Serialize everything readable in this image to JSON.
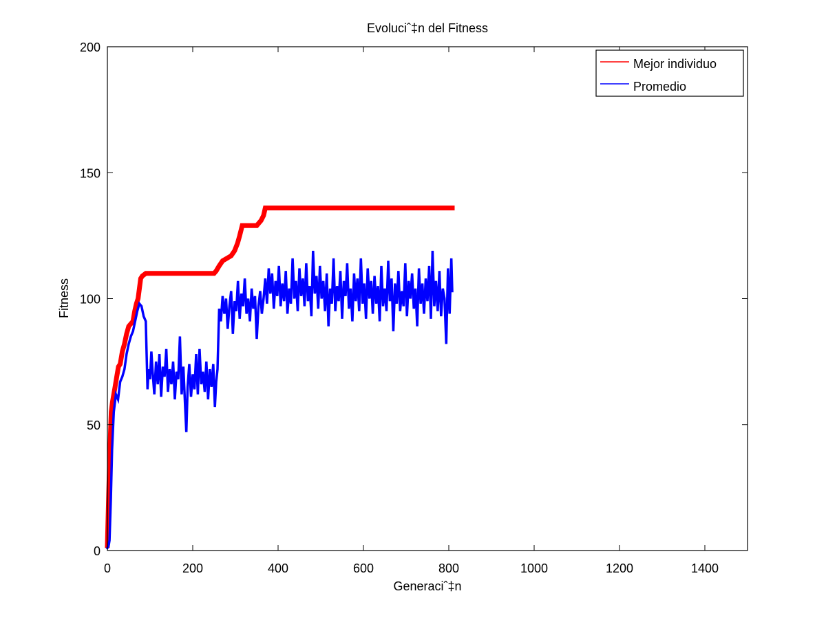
{
  "chart_data": {
    "type": "line",
    "title": "Evoluciˆ‡n del Fitness",
    "xlabel": "Generaciˆ‡n",
    "ylabel": "Fitness",
    "xlim": [
      0,
      1500
    ],
    "ylim": [
      0,
      200
    ],
    "xticks": [
      0,
      200,
      400,
      600,
      800,
      1000,
      1200,
      1400
    ],
    "yticks": [
      0,
      50,
      100,
      150,
      200
    ],
    "xtick_labels": [
      "0",
      "200",
      "400",
      "600",
      "800",
      "1000",
      "1200",
      "1400"
    ],
    "ytick_labels": [
      "0",
      "50",
      "100",
      "150",
      "200"
    ],
    "grid": false,
    "legend_position": "top-right",
    "series": [
      {
        "name": "Mejor individuo",
        "color": "#ff0000",
        "line_width": "thick",
        "points": [
          [
            0,
            2
          ],
          [
            3,
            22
          ],
          [
            6,
            40
          ],
          [
            9,
            55
          ],
          [
            12,
            59
          ],
          [
            15,
            62
          ],
          [
            18,
            65
          ],
          [
            22,
            69
          ],
          [
            26,
            73
          ],
          [
            30,
            74
          ],
          [
            35,
            79
          ],
          [
            40,
            82
          ],
          [
            45,
            86
          ],
          [
            50,
            89
          ],
          [
            55,
            90
          ],
          [
            60,
            91
          ],
          [
            64,
            95
          ],
          [
            68,
            98
          ],
          [
            72,
            100
          ],
          [
            75,
            104
          ],
          [
            78,
            108
          ],
          [
            82,
            109
          ],
          [
            90,
            110
          ],
          [
            150,
            110
          ],
          [
            200,
            110
          ],
          [
            250,
            110
          ],
          [
            255,
            111
          ],
          [
            262,
            113
          ],
          [
            270,
            115
          ],
          [
            280,
            116
          ],
          [
            290,
            117
          ],
          [
            298,
            119
          ],
          [
            305,
            122
          ],
          [
            310,
            125
          ],
          [
            316,
            129
          ],
          [
            330,
            129
          ],
          [
            350,
            129
          ],
          [
            360,
            131
          ],
          [
            366,
            133
          ],
          [
            370,
            136
          ],
          [
            400,
            136
          ],
          [
            500,
            136
          ],
          [
            600,
            136
          ],
          [
            700,
            136
          ],
          [
            808,
            136
          ]
        ]
      },
      {
        "name": "Promedio",
        "color": "#0000ff",
        "line_width": "medium",
        "points": [
          [
            0,
            1
          ],
          [
            3,
            2
          ],
          [
            5,
            4
          ],
          [
            8,
            20
          ],
          [
            11,
            40
          ],
          [
            15,
            55
          ],
          [
            20,
            62
          ],
          [
            25,
            60
          ],
          [
            30,
            67
          ],
          [
            35,
            69
          ],
          [
            40,
            72
          ],
          [
            45,
            78
          ],
          [
            50,
            82
          ],
          [
            55,
            85
          ],
          [
            60,
            87
          ],
          [
            65,
            91
          ],
          [
            70,
            95
          ],
          [
            75,
            98
          ],
          [
            80,
            97
          ],
          [
            85,
            93
          ],
          [
            90,
            91
          ],
          [
            94,
            64
          ],
          [
            97,
            72
          ],
          [
            100,
            68
          ],
          [
            103,
            79
          ],
          [
            106,
            71
          ],
          [
            110,
            62
          ],
          [
            114,
            75
          ],
          [
            118,
            66
          ],
          [
            122,
            78
          ],
          [
            126,
            61
          ],
          [
            130,
            73
          ],
          [
            134,
            69
          ],
          [
            138,
            80
          ],
          [
            142,
            63
          ],
          [
            146,
            72
          ],
          [
            150,
            66
          ],
          [
            154,
            75
          ],
          [
            158,
            60
          ],
          [
            162,
            71
          ],
          [
            166,
            68
          ],
          [
            170,
            85
          ],
          [
            174,
            62
          ],
          [
            178,
            73
          ],
          [
            182,
            58
          ],
          [
            185,
            47
          ],
          [
            188,
            65
          ],
          [
            192,
            74
          ],
          [
            196,
            61
          ],
          [
            200,
            70
          ],
          [
            204,
            64
          ],
          [
            208,
            78
          ],
          [
            212,
            62
          ],
          [
            216,
            80
          ],
          [
            220,
            66
          ],
          [
            224,
            71
          ],
          [
            228,
            63
          ],
          [
            232,
            75
          ],
          [
            236,
            60
          ],
          [
            240,
            72
          ],
          [
            244,
            65
          ],
          [
            248,
            74
          ],
          [
            252,
            57
          ],
          [
            255,
            67
          ],
          [
            258,
            72
          ],
          [
            262,
            96
          ],
          [
            266,
            91
          ],
          [
            270,
            101
          ],
          [
            274,
            94
          ],
          [
            278,
            100
          ],
          [
            282,
            88
          ],
          [
            286,
            97
          ],
          [
            290,
            103
          ],
          [
            294,
            86
          ],
          [
            298,
            99
          ],
          [
            302,
            95
          ],
          [
            306,
            107
          ],
          [
            310,
            92
          ],
          [
            314,
            102
          ],
          [
            318,
            97
          ],
          [
            322,
            108
          ],
          [
            326,
            94
          ],
          [
            330,
            100
          ],
          [
            334,
            91
          ],
          [
            338,
            104
          ],
          [
            342,
            96
          ],
          [
            346,
            101
          ],
          [
            350,
            84
          ],
          [
            354,
            97
          ],
          [
            358,
            103
          ],
          [
            362,
            94
          ],
          [
            366,
            100
          ],
          [
            370,
            108
          ],
          [
            374,
            98
          ],
          [
            378,
            112
          ],
          [
            382,
            102
          ],
          [
            386,
            110
          ],
          [
            390,
            96
          ],
          [
            394,
            107
          ],
          [
            398,
            101
          ],
          [
            402,
            113
          ],
          [
            406,
            97
          ],
          [
            410,
            106
          ],
          [
            414,
            99
          ],
          [
            418,
            111
          ],
          [
            422,
            94
          ],
          [
            426,
            104
          ],
          [
            430,
            98
          ],
          [
            434,
            116
          ],
          [
            438,
            100
          ],
          [
            442,
            107
          ],
          [
            446,
            95
          ],
          [
            450,
            112
          ],
          [
            454,
            101
          ],
          [
            458,
            108
          ],
          [
            462,
            97
          ],
          [
            466,
            114
          ],
          [
            470,
            99
          ],
          [
            474,
            105
          ],
          [
            478,
            93
          ],
          [
            482,
            119
          ],
          [
            486,
            102
          ],
          [
            490,
            109
          ],
          [
            494,
            96
          ],
          [
            498,
            113
          ],
          [
            502,
            100
          ],
          [
            506,
            107
          ],
          [
            510,
            95
          ],
          [
            514,
            110
          ],
          [
            518,
            89
          ],
          [
            522,
            104
          ],
          [
            526,
            98
          ],
          [
            530,
            116
          ],
          [
            534,
            95
          ],
          [
            538,
            105
          ],
          [
            542,
            99
          ],
          [
            546,
            111
          ],
          [
            550,
            92
          ],
          [
            554,
            107
          ],
          [
            558,
            101
          ],
          [
            562,
            114
          ],
          [
            566,
            96
          ],
          [
            570,
            104
          ],
          [
            574,
            91
          ],
          [
            578,
            110
          ],
          [
            582,
            99
          ],
          [
            586,
            108
          ],
          [
            590,
            95
          ],
          [
            594,
            116
          ],
          [
            598,
            98
          ],
          [
            602,
            106
          ],
          [
            606,
            92
          ],
          [
            610,
            112
          ],
          [
            614,
            100
          ],
          [
            618,
            107
          ],
          [
            622,
            94
          ],
          [
            626,
            109
          ],
          [
            630,
            98
          ],
          [
            634,
            105
          ],
          [
            638,
            91
          ],
          [
            642,
            113
          ],
          [
            646,
            97
          ],
          [
            650,
            104
          ],
          [
            654,
            95
          ],
          [
            658,
            115
          ],
          [
            662,
            99
          ],
          [
            666,
            108
          ],
          [
            670,
            87
          ],
          [
            674,
            106
          ],
          [
            678,
            98
          ],
          [
            682,
            111
          ],
          [
            686,
            95
          ],
          [
            690,
            103
          ],
          [
            694,
            97
          ],
          [
            698,
            114
          ],
          [
            702,
            93
          ],
          [
            706,
            107
          ],
          [
            710,
            100
          ],
          [
            714,
            110
          ],
          [
            718,
            96
          ],
          [
            722,
            104
          ],
          [
            726,
            89
          ],
          [
            730,
            112
          ],
          [
            734,
            98
          ],
          [
            738,
            106
          ],
          [
            742,
            94
          ],
          [
            746,
            108
          ],
          [
            750,
            99
          ],
          [
            754,
            113
          ],
          [
            758,
            92
          ],
          [
            762,
            119
          ],
          [
            766,
            97
          ],
          [
            770,
            107
          ],
          [
            774,
            95
          ],
          [
            778,
            111
          ],
          [
            782,
            93
          ],
          [
            786,
            104
          ],
          [
            790,
            100
          ],
          [
            794,
            82
          ],
          [
            798,
            112
          ],
          [
            802,
            94
          ],
          [
            806,
            116
          ],
          [
            808,
            103
          ]
        ]
      }
    ]
  }
}
